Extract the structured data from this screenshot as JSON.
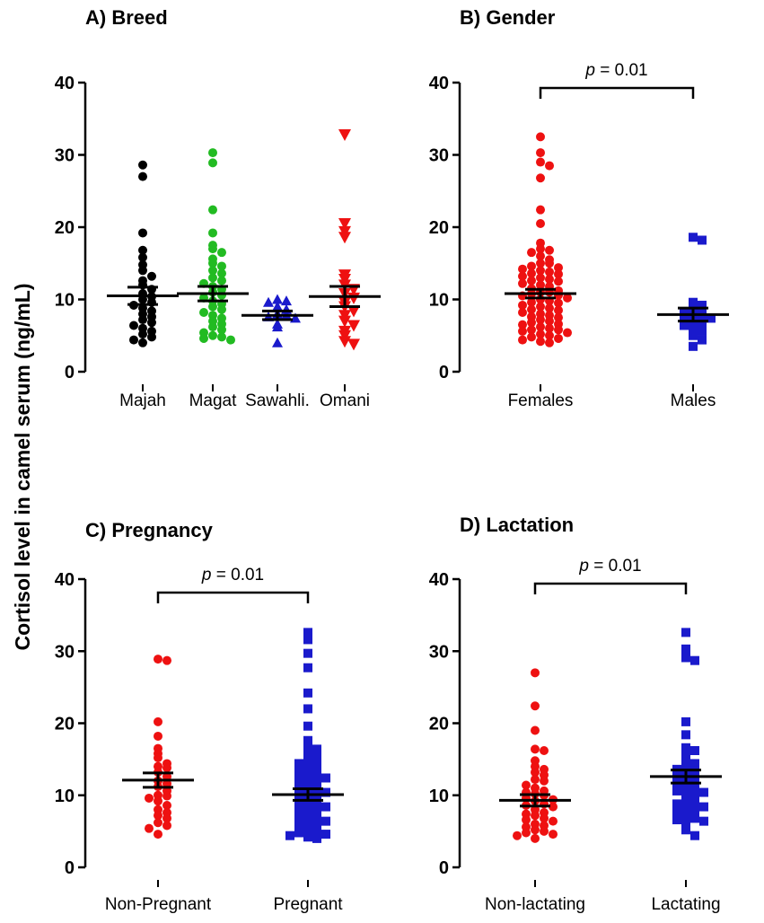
{
  "y_axis_label": "Cortisol level in camel serum (ng/mL)",
  "chart_data": [
    {
      "type": "scatter",
      "panel": "A",
      "title": "A) Breed",
      "ylim": [
        0,
        40
      ],
      "yticks": [
        "0",
        "10",
        "20",
        "30",
        "40"
      ],
      "significance": null,
      "groups": [
        {
          "name": "Majah",
          "color": "#000000",
          "marker": "circle",
          "mean": 10.5,
          "sem": 1.2,
          "values": [
            28.6,
            27.0,
            19.2,
            16.8,
            15.8,
            14.8,
            14.0,
            13.2,
            12.6,
            12.0,
            11.4,
            10.8,
            10.4,
            10.0,
            9.6,
            9.2,
            8.8,
            8.4,
            8.0,
            7.6,
            7.2,
            6.8,
            6.4,
            6.0,
            5.6,
            5.2,
            4.8,
            4.4,
            4.0
          ]
        },
        {
          "name": "Magat",
          "color": "#22bb22",
          "marker": "circle",
          "mean": 10.8,
          "sem": 1.0,
          "values": [
            30.3,
            28.9,
            22.4,
            19.2,
            17.5,
            17.0,
            16.5,
            15.6,
            15.0,
            14.6,
            14.0,
            13.6,
            13.0,
            12.6,
            12.2,
            11.8,
            11.4,
            11.0,
            10.6,
            10.2,
            9.8,
            9.4,
            9.0,
            8.6,
            8.2,
            7.8,
            7.4,
            7.0,
            6.6,
            6.2,
            5.8,
            5.4,
            5.0,
            4.8,
            4.6,
            4.4
          ]
        },
        {
          "name": "Sawahli.",
          "color": "#1a1acc",
          "marker": "triangle-up",
          "mean": 7.8,
          "sem": 0.6,
          "values": [
            10.0,
            9.8,
            9.6,
            9.0,
            8.6,
            8.0,
            7.8,
            7.6,
            7.4,
            6.6,
            6.2,
            4.0
          ]
        },
        {
          "name": "Omani",
          "color": "#ee1111",
          "marker": "triangle-down",
          "mean": 10.4,
          "sem": 1.4,
          "values": [
            32.8,
            20.5,
            19.4,
            18.6,
            13.4,
            12.8,
            12.0,
            11.4,
            10.8,
            10.2,
            9.6,
            9.0,
            8.4,
            7.8,
            7.0,
            6.4,
            5.6,
            5.0,
            4.2,
            3.8
          ]
        }
      ]
    },
    {
      "type": "scatter",
      "panel": "B",
      "title": "B) Gender",
      "ylim": [
        0,
        40
      ],
      "yticks": [
        "0",
        "10",
        "20",
        "30",
        "40"
      ],
      "significance": "0.01",
      "groups": [
        {
          "name": "Females",
          "color": "#ee1111",
          "marker": "circle",
          "mean": 10.8,
          "sem": 0.6,
          "values": [
            32.5,
            30.3,
            29.0,
            28.5,
            26.8,
            22.4,
            20.5,
            17.8,
            17.0,
            16.8,
            16.5,
            16.0,
            15.5,
            15.0,
            15.0,
            14.6,
            14.2,
            14.0,
            13.8,
            13.5,
            13.2,
            13.0,
            12.8,
            12.5,
            12.2,
            12.0,
            11.8,
            11.5,
            11.2,
            11.0,
            10.8,
            10.5,
            10.2,
            10.0,
            9.8,
            9.5,
            9.2,
            9.0,
            8.8,
            8.5,
            8.2,
            8.0,
            7.8,
            7.5,
            7.2,
            7.0,
            6.8,
            6.5,
            6.2,
            6.0,
            5.8,
            5.6,
            5.4,
            5.2,
            5.0,
            4.8,
            4.6,
            4.4,
            4.2,
            4.0,
            11.0,
            10.6,
            9.6,
            8.6,
            7.6,
            6.6,
            5.8,
            12.6,
            13.6,
            14.4
          ]
        },
        {
          "name": "Males",
          "color": "#1a1acc",
          "marker": "square",
          "mean": 7.9,
          "sem": 0.9,
          "values": [
            18.6,
            18.2,
            9.6,
            9.2,
            8.8,
            8.4,
            8.2,
            8.0,
            7.8,
            7.6,
            7.4,
            7.2,
            6.8,
            6.4,
            6.0,
            5.6,
            5.0,
            4.4,
            3.5
          ]
        }
      ]
    },
    {
      "type": "scatter",
      "panel": "C",
      "title": "C) Pregnancy",
      "ylim": [
        0,
        40
      ],
      "yticks": [
        "0",
        "10",
        "20",
        "30",
        "40"
      ],
      "significance": "0.01",
      "groups": [
        {
          "name": "Non-Pregnant",
          "color": "#ee1111",
          "marker": "circle",
          "mean": 12.1,
          "sem": 1.0,
          "values": [
            28.9,
            28.7,
            20.2,
            18.2,
            16.5,
            15.2,
            14.4,
            13.8,
            13.2,
            12.6,
            12.0,
            11.6,
            11.2,
            10.6,
            10.0,
            9.6,
            9.2,
            8.6,
            8.0,
            7.6,
            7.2,
            6.8,
            6.2,
            5.8,
            5.4,
            4.6,
            15.8,
            14.0,
            9.9
          ]
        },
        {
          "name": "Pregnant",
          "color": "#1a1acc",
          "marker": "square",
          "mean": 10.1,
          "sem": 0.8,
          "values": [
            32.6,
            31.6,
            29.7,
            27.7,
            24.2,
            22.0,
            19.6,
            17.6,
            16.6,
            16.4,
            16.0,
            15.6,
            15.0,
            14.6,
            14.0,
            13.6,
            13.2,
            12.8,
            12.4,
            12.0,
            11.6,
            11.2,
            10.8,
            10.4,
            10.0,
            9.6,
            9.2,
            8.8,
            8.4,
            8.0,
            7.6,
            7.2,
            6.8,
            6.4,
            6.0,
            5.6,
            5.2,
            4.8,
            4.6,
            4.4,
            4.2,
            4.0,
            10.6,
            9.4,
            8.6,
            7.4,
            6.6,
            5.8,
            5.0,
            12.6,
            11.4,
            13.4,
            14.4
          ]
        }
      ]
    },
    {
      "type": "scatter",
      "panel": "D",
      "title": "D) Lactation",
      "ylim": [
        0,
        40
      ],
      "yticks": [
        "0",
        "10",
        "20",
        "30",
        "40"
      ],
      "significance": "0.01",
      "groups": [
        {
          "name": "Non-lactating",
          "color": "#ee1111",
          "marker": "circle",
          "mean": 9.3,
          "sem": 0.8,
          "values": [
            27.0,
            22.4,
            19.0,
            16.4,
            16.2,
            14.8,
            14.0,
            13.6,
            12.8,
            12.2,
            11.4,
            11.0,
            10.6,
            10.2,
            10.0,
            9.6,
            9.2,
            8.8,
            8.4,
            8.0,
            7.6,
            7.2,
            6.8,
            6.4,
            6.0,
            5.6,
            5.2,
            4.8,
            4.4,
            4.0,
            10.4,
            9.4,
            8.6,
            7.4,
            6.6,
            5.8,
            5.0,
            4.6,
            12.0,
            13.2
          ]
        },
        {
          "name": "Lactating",
          "color": "#1a1acc",
          "marker": "square",
          "mean": 12.6,
          "sem": 0.9,
          "values": [
            32.6,
            30.3,
            29.1,
            28.7,
            20.2,
            18.4,
            16.6,
            16.2,
            15.6,
            14.4,
            14.0,
            13.6,
            13.2,
            12.8,
            12.4,
            12.0,
            11.6,
            11.2,
            10.8,
            10.4,
            10.0,
            9.6,
            9.2,
            8.8,
            8.4,
            8.0,
            7.6,
            7.2,
            6.8,
            6.4,
            6.0,
            5.2,
            4.4,
            10.6,
            9.0,
            7.8,
            6.6,
            14.8,
            13.8,
            12.2
          ]
        }
      ]
    }
  ]
}
